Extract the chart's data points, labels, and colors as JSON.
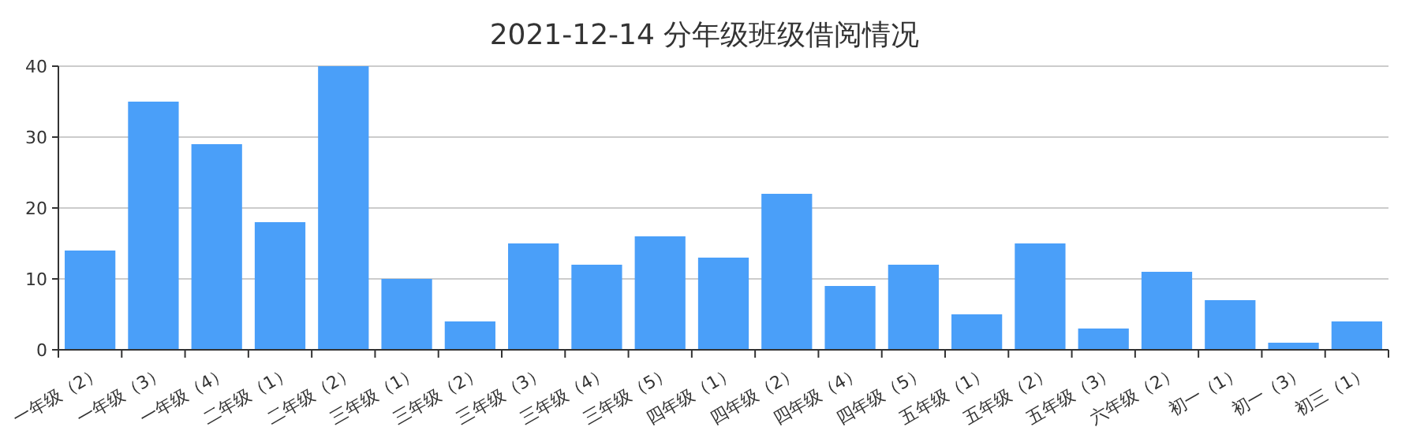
{
  "chart_data": {
    "type": "bar",
    "title": "2021-12-14 分年级班级借阅情况",
    "categories": [
      "一年级（2）",
      "一年级（3）",
      "一年级（4）",
      "二年级（1）",
      "二年级（2）",
      "三年级（1）",
      "三年级（2）",
      "三年级（3）",
      "三年级（4）",
      "三年级（5）",
      "四年级（1）",
      "四年级（2）",
      "四年级（4）",
      "四年级（5）",
      "五年级（1）",
      "五年级（2）",
      "五年级（3）",
      "六年级（2）",
      "初一（1）",
      "初一（3）",
      "初三（1）"
    ],
    "values": [
      14,
      35,
      29,
      18,
      40,
      10,
      4,
      15,
      12,
      16,
      13,
      22,
      9,
      12,
      5,
      15,
      3,
      11,
      7,
      1,
      4
    ],
    "color": "#4a9ff9",
    "ylim": [
      0,
      40
    ],
    "yticks": [
      0,
      10,
      20,
      30,
      40
    ],
    "grid": "y"
  }
}
